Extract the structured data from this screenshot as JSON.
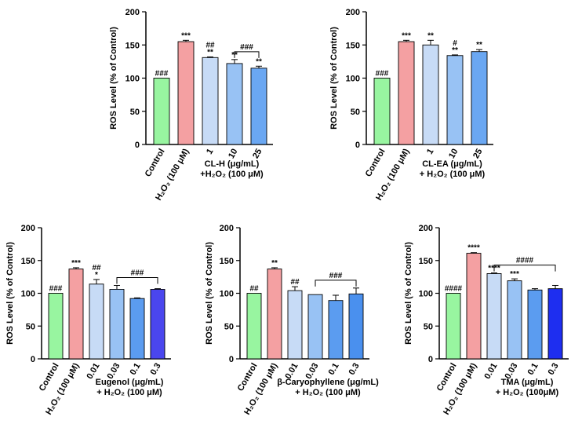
{
  "chart_data": [
    {
      "type": "bar",
      "ylabel": "ROS Level (% of Control)",
      "ylim": [
        0,
        200
      ],
      "yticks": [
        0,
        50,
        100,
        150,
        200
      ],
      "xlabel_line1": "CL-H (μg/mL)",
      "xlabel_line2": "+H₂O₂ (100 μM)",
      "categories": [
        "Control",
        "H₂O₂ (100 μM)",
        "1",
        "10",
        "25"
      ],
      "values": [
        100,
        155,
        131,
        122,
        115
      ],
      "errors": [
        0,
        2,
        1,
        6,
        3
      ],
      "colors": [
        "#98f5a0",
        "#f4a0a2",
        "#c7dbf6",
        "#98c2f4",
        "#6aa7f2"
      ],
      "annotations": [
        [
          "###"
        ],
        [
          "***"
        ],
        [
          "##",
          "**"
        ],
        [
          "**"
        ],
        [
          "**"
        ]
      ],
      "bracket": {
        "from": 3,
        "to": 4,
        "label": "###"
      }
    },
    {
      "type": "bar",
      "ylabel": "ROS Level (% of Control)",
      "ylim": [
        0,
        200
      ],
      "yticks": [
        0,
        50,
        100,
        150,
        200
      ],
      "xlabel_line1": "CL-EA (μg/mL)",
      "xlabel_line2": "+ H₂O₂ (100 μM)",
      "categories": [
        "Control",
        "H₂O₂ (100 μM)",
        "1",
        "10",
        "25"
      ],
      "values": [
        100,
        155,
        150,
        134,
        140
      ],
      "errors": [
        0,
        2,
        7,
        1,
        3
      ],
      "colors": [
        "#98f5a0",
        "#f4a0a2",
        "#c7dbf6",
        "#98c2f4",
        "#6aa7f2"
      ],
      "annotations": [
        [
          "###"
        ],
        [
          "***"
        ],
        [
          "**"
        ],
        [
          "#",
          "**"
        ],
        [
          "**"
        ]
      ],
      "bracket": null
    },
    {
      "type": "bar",
      "ylabel": "ROS Level (% of Control)",
      "ylim": [
        0,
        200
      ],
      "yticks": [
        0,
        50,
        100,
        150,
        200
      ],
      "xlabel_line1": "Eugenol (μg/mL)",
      "xlabel_line2": "+ H₂O₂ (100 μM)",
      "categories": [
        "Control",
        "H₂O₂ (100 μM)",
        "0.01",
        "0.03",
        "0.1",
        "0.3"
      ],
      "values": [
        100,
        137,
        114,
        106,
        92,
        106
      ],
      "errors": [
        0,
        2,
        7,
        6,
        1,
        1
      ],
      "colors": [
        "#98f5a0",
        "#f4a0a2",
        "#c7dbf6",
        "#98c2f4",
        "#5b9cf0",
        "#4a46ee"
      ],
      "annotations": [
        [
          "###"
        ],
        [
          "***"
        ],
        [
          "##",
          "*"
        ],
        [],
        [],
        []
      ],
      "bracket": {
        "from": 3,
        "to": 5,
        "label": "###"
      }
    },
    {
      "type": "bar",
      "ylabel": "ROS Level (% of Control)",
      "ylim": [
        0,
        200
      ],
      "yticks": [
        0,
        50,
        100,
        150,
        200
      ],
      "xlabel_line1": "β-Caryophyllene (μg/mL)",
      "xlabel_line2": "+ H₂O₂ (100 μM)",
      "categories": [
        "Control",
        "H₂O₂ (100 μM)",
        "0.01",
        "0.03",
        "0.1",
        "0.3"
      ],
      "values": [
        100,
        137,
        104,
        98,
        89,
        99
      ],
      "errors": [
        0,
        2,
        6,
        0,
        8,
        9
      ],
      "colors": [
        "#98f5a0",
        "#f4a0a2",
        "#c7dbf6",
        "#98c2f4",
        "#5b9cf0",
        "#4a90ee"
      ],
      "annotations": [
        [
          "##"
        ],
        [
          "**"
        ],
        [
          "##"
        ],
        [],
        [],
        []
      ],
      "bracket": {
        "from": 3,
        "to": 5,
        "label": "###"
      }
    },
    {
      "type": "bar",
      "ylabel": "ROS Level (% of Control)",
      "ylim": [
        0,
        200
      ],
      "yticks": [
        0,
        50,
        100,
        150,
        200
      ],
      "xlabel_line1": "TMA (μg/mL)",
      "xlabel_line2": "+ H₂O₂ (100μM)",
      "categories": [
        "Control",
        "H₂O₂ (100 μM)",
        "0.01",
        "0.03",
        "0.1",
        "0.3"
      ],
      "values": [
        100,
        161,
        130,
        119,
        105,
        107
      ],
      "errors": [
        0,
        1,
        1,
        3,
        2,
        5
      ],
      "colors": [
        "#98f5a0",
        "#f4a0a2",
        "#c7dbf6",
        "#98c2f4",
        "#5b9cf0",
        "#1e2ef0"
      ],
      "annotations": [
        [
          "####"
        ],
        [
          "****"
        ],
        [
          "****"
        ],
        [
          "***"
        ],
        [],
        []
      ],
      "bracket": {
        "from": 2,
        "to": 5,
        "label": "####"
      }
    }
  ]
}
